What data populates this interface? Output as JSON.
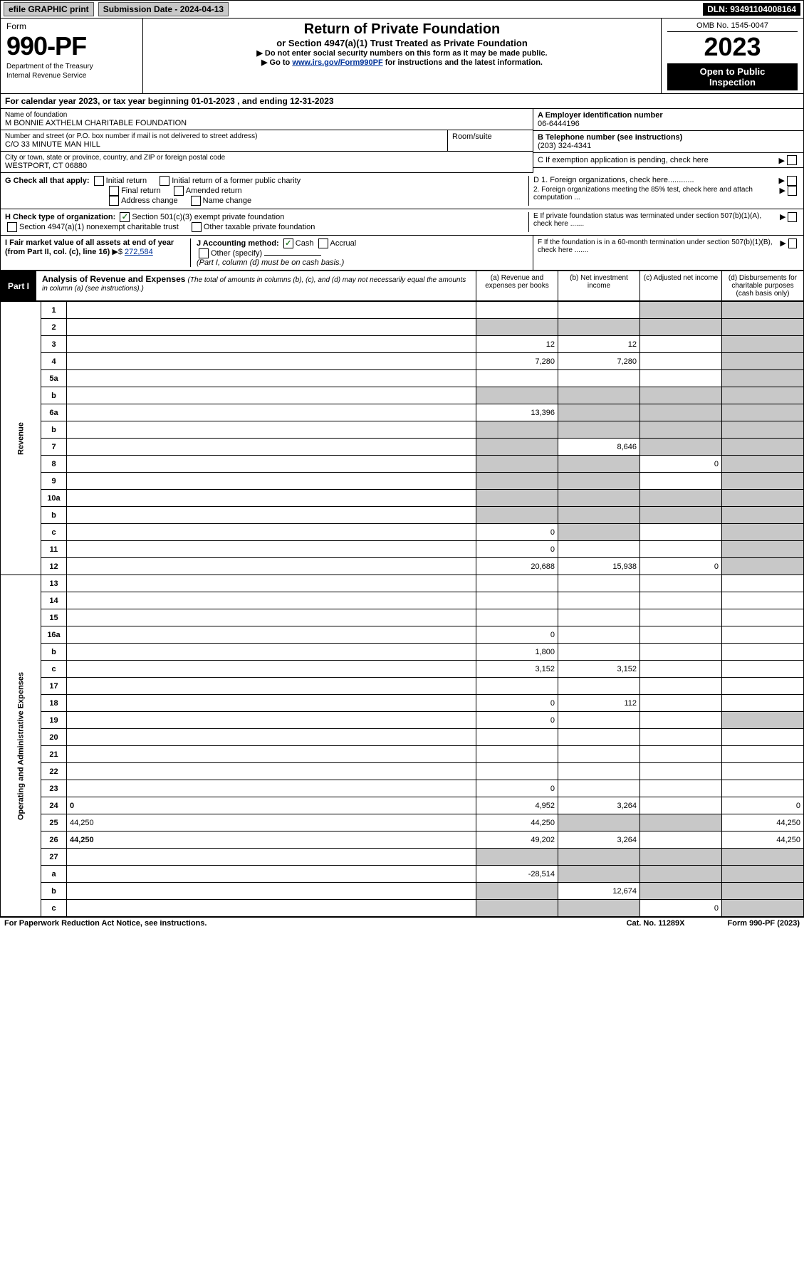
{
  "topbar": {
    "efile": "efile GRAPHIC print",
    "submission": "Submission Date - 2024-04-13",
    "dln": "DLN: 93491104008164"
  },
  "header": {
    "form_word": "Form",
    "form_number": "990-PF",
    "dept1": "Department of the Treasury",
    "dept2": "Internal Revenue Service",
    "title": "Return of Private Foundation",
    "subtitle": "or Section 4947(a)(1) Trust Treated as Private Foundation",
    "instr1": "▶ Do not enter social security numbers on this form as it may be made public.",
    "instr2_pre": "▶ Go to ",
    "instr2_link": "www.irs.gov/Form990PF",
    "instr2_post": " for instructions and the latest information.",
    "omb": "OMB No. 1545-0047",
    "year": "2023",
    "open1": "Open to Public",
    "open2": "Inspection"
  },
  "calendar": "For calendar year 2023, or tax year beginning 01-01-2023             , and ending 12-31-2023",
  "foundation": {
    "name_lbl": "Name of foundation",
    "name": "M BONNIE AXTHELM CHARITABLE FOUNDATION",
    "addr_lbl": "Number and street (or P.O. box number if mail is not delivered to street address)",
    "addr": "C/O 33 MINUTE MAN HILL",
    "room_lbl": "Room/suite",
    "city_lbl": "City or town, state or province, country, and ZIP or foreign postal code",
    "city": "WESTPORT, CT  06880"
  },
  "right_block": {
    "ein_lbl": "A Employer identification number",
    "ein": "06-6444196",
    "phone_lbl": "B Telephone number (see instructions)",
    "phone": "(203) 324-4341",
    "c_text": "C If exemption application is pending, check here",
    "d1": "D 1. Foreign organizations, check here............",
    "d2": "2. Foreign organizations meeting the 85% test, check here and attach computation ...",
    "e": "E  If private foundation status was terminated under section 507(b)(1)(A), check here .......",
    "f": "F  If the foundation is in a 60-month termination under section 507(b)(1)(B), check here .......",
    "arrow": "▶"
  },
  "sectionG": {
    "label": "G Check all that apply:",
    "opts": [
      "Initial return",
      "Initial return of a former public charity",
      "Final return",
      "Amended return",
      "Address change",
      "Name change"
    ]
  },
  "sectionH": {
    "label": "H Check type of organization:",
    "opt1": "Section 501(c)(3) exempt private foundation",
    "opt2": "Section 4947(a)(1) nonexempt charitable trust",
    "opt3": "Other taxable private foundation"
  },
  "sectionI": {
    "label": "I Fair market value of all assets at end of year (from Part II, col. (c), line 16)",
    "arrow": "▶$",
    "value": "272,584"
  },
  "sectionJ": {
    "label": "J Accounting method:",
    "cash": "Cash",
    "accrual": "Accrual",
    "other": "Other (specify)",
    "note": "(Part I, column (d) must be on cash basis.)"
  },
  "part1": {
    "label": "Part I",
    "title": "Analysis of Revenue and Expenses",
    "title_note": "(The total of amounts in columns (b), (c), and (d) may not necessarily equal the amounts in column (a) (see instructions).)",
    "col_a": "(a)   Revenue and expenses per books",
    "col_b": "(b)   Net investment income",
    "col_c": "(c)   Adjusted net income",
    "col_d": "(d)   Disbursements for charitable purposes (cash basis only)"
  },
  "vert": {
    "revenue": "Revenue",
    "opex": "Operating and Administrative Expenses"
  },
  "rows": [
    {
      "n": "1",
      "d": "",
      "a": "",
      "b": "",
      "c": "",
      "shade_c": true,
      "shade_d": true
    },
    {
      "n": "2",
      "d": "",
      "a": "",
      "b": "",
      "c": "",
      "allshade": true
    },
    {
      "n": "3",
      "d": "",
      "a": "12",
      "b": "12",
      "c": "",
      "shade_d": true
    },
    {
      "n": "4",
      "d": "",
      "a": "7,280",
      "b": "7,280",
      "c": "",
      "shade_d": true
    },
    {
      "n": "5a",
      "d": "",
      "a": "",
      "b": "",
      "c": "",
      "shade_d": true
    },
    {
      "n": "b",
      "d": "",
      "a": "",
      "b": "",
      "c": "",
      "allshade": true
    },
    {
      "n": "6a",
      "d": "",
      "a": "13,396",
      "b": "",
      "c": "",
      "shade_b": true,
      "shade_c": true,
      "shade_d": true
    },
    {
      "n": "b",
      "d": "",
      "a": "",
      "b": "",
      "c": "",
      "allshade": true
    },
    {
      "n": "7",
      "d": "",
      "a": "",
      "b": "8,646",
      "c": "",
      "shade_a": true,
      "shade_c": true,
      "shade_d": true
    },
    {
      "n": "8",
      "d": "",
      "a": "",
      "b": "",
      "c": "0",
      "shade_a": true,
      "shade_b": true,
      "shade_d": true
    },
    {
      "n": "9",
      "d": "",
      "a": "",
      "b": "",
      "c": "",
      "shade_a": true,
      "shade_b": true,
      "shade_d": true
    },
    {
      "n": "10a",
      "d": "",
      "a": "",
      "b": "",
      "c": "",
      "allshade": true
    },
    {
      "n": "b",
      "d": "",
      "a": "",
      "b": "",
      "c": "",
      "allshade": true
    },
    {
      "n": "c",
      "d": "",
      "a": "0",
      "b": "",
      "c": "",
      "shade_b": true,
      "shade_d": true
    },
    {
      "n": "11",
      "d": "",
      "a": "0",
      "b": "",
      "c": "",
      "shade_d": true
    },
    {
      "n": "12",
      "d": "",
      "a": "20,688",
      "b": "15,938",
      "c": "0",
      "bold": true,
      "shade_d": true
    },
    {
      "n": "13",
      "d": "",
      "a": "",
      "b": "",
      "c": ""
    },
    {
      "n": "14",
      "d": "",
      "a": "",
      "b": "",
      "c": ""
    },
    {
      "n": "15",
      "d": "",
      "a": "",
      "b": "",
      "c": ""
    },
    {
      "n": "16a",
      "d": "",
      "a": "0",
      "b": "",
      "c": ""
    },
    {
      "n": "b",
      "d": "",
      "a": "1,800",
      "b": "",
      "c": ""
    },
    {
      "n": "c",
      "d": "",
      "a": "3,152",
      "b": "3,152",
      "c": ""
    },
    {
      "n": "17",
      "d": "",
      "a": "",
      "b": "",
      "c": ""
    },
    {
      "n": "18",
      "d": "",
      "a": "0",
      "b": "112",
      "c": ""
    },
    {
      "n": "19",
      "d": "",
      "a": "0",
      "b": "",
      "c": "",
      "shade_d": true
    },
    {
      "n": "20",
      "d": "",
      "a": "",
      "b": "",
      "c": ""
    },
    {
      "n": "21",
      "d": "",
      "a": "",
      "b": "",
      "c": ""
    },
    {
      "n": "22",
      "d": "",
      "a": "",
      "b": "",
      "c": ""
    },
    {
      "n": "23",
      "d": "",
      "a": "0",
      "b": "",
      "c": ""
    },
    {
      "n": "24",
      "d": "0",
      "a": "4,952",
      "b": "3,264",
      "c": "",
      "bold": true
    },
    {
      "n": "25",
      "d": "44,250",
      "a": "44,250",
      "b": "",
      "c": "",
      "shade_b": true,
      "shade_c": true
    },
    {
      "n": "26",
      "d": "44,250",
      "a": "49,202",
      "b": "3,264",
      "c": "",
      "bold": true
    },
    {
      "n": "27",
      "d": "",
      "a": "",
      "b": "",
      "c": "",
      "allshade": true
    },
    {
      "n": "a",
      "d": "",
      "a": "-28,514",
      "b": "",
      "c": "",
      "bold": true,
      "shade_b": true,
      "shade_c": true,
      "shade_d": true
    },
    {
      "n": "b",
      "d": "",
      "a": "",
      "b": "12,674",
      "c": "",
      "bold": true,
      "shade_a": true,
      "shade_c": true,
      "shade_d": true
    },
    {
      "n": "c",
      "d": "",
      "a": "",
      "b": "",
      "c": "0",
      "bold": true,
      "shade_a": true,
      "shade_b": true,
      "shade_d": true
    }
  ],
  "footer": {
    "left": "For Paperwork Reduction Act Notice, see instructions.",
    "mid": "Cat. No. 11289X",
    "right": "Form 990-PF (2023)"
  }
}
